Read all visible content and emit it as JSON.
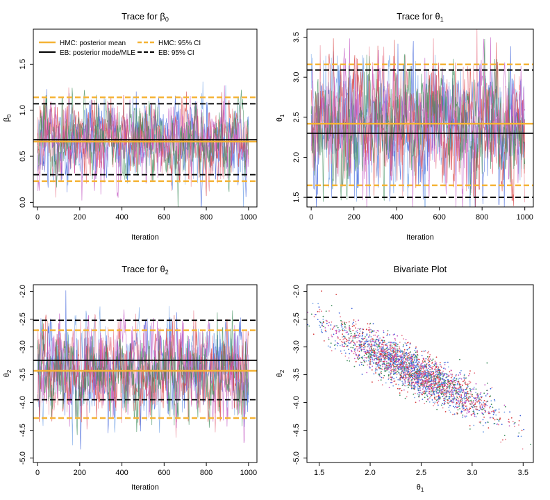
{
  "colors": {
    "hmc": "#F5B335",
    "eb": "#000000",
    "chains": [
      "#6FA0E6",
      "#3A5FD9",
      "#E8788A",
      "#D63A3A",
      "#C154C1",
      "#3C8C5A"
    ]
  },
  "legend": {
    "hmc_mean": "HMC: posterior mean",
    "eb_mode": "EB: posterior mode/MLE",
    "hmc_ci": "HMC: 95% CI",
    "eb_ci": "EB: 95% CI"
  },
  "chart_data": [
    {
      "type": "line",
      "title_text": "Trace for ",
      "title_symbol": "β",
      "title_sub": "0",
      "xlabel": "Iteration",
      "ylabel_symbol": "β",
      "ylabel_sub": "0",
      "xlim": [
        -20,
        1040
      ],
      "ylim": [
        -0.05,
        1.88
      ],
      "xticks": [
        0,
        200,
        400,
        600,
        800,
        1000
      ],
      "xtick_labels": [
        "0",
        "200",
        "400",
        "600",
        "800",
        "1000"
      ],
      "yticks": [
        0.0,
        0.5,
        1.0,
        1.5
      ],
      "ytick_labels": [
        "0.0",
        "0.5",
        "1.0",
        "1.5"
      ],
      "series": [
        {
          "name": "chains",
          "n_iter": 1000,
          "n_chains": 6,
          "center": 0.67,
          "spread": 0.2
        }
      ],
      "hlines": {
        "hmc_mean": 0.66,
        "eb_mode": 0.68,
        "hmc_ci": [
          0.23,
          1.14
        ],
        "eb_ci": [
          0.3,
          1.07
        ]
      }
    },
    {
      "type": "line",
      "title_text": "Trace for ",
      "title_symbol": "θ",
      "title_sub": "1",
      "xlabel": "Iteration",
      "ylabel_symbol": "θ",
      "ylabel_sub": "1",
      "xlim": [
        -20,
        1040
      ],
      "ylim": [
        1.38,
        3.6
      ],
      "xticks": [
        0,
        200,
        400,
        600,
        800,
        1000
      ],
      "xtick_labels": [
        "0",
        "200",
        "400",
        "600",
        "800",
        "1000"
      ],
      "yticks": [
        1.5,
        2.0,
        2.5,
        3.0,
        3.5
      ],
      "ytick_labels": [
        "1.5",
        "2.0",
        "2.5",
        "3.0",
        "3.5"
      ],
      "series": [
        {
          "name": "chains",
          "n_iter": 1000,
          "n_chains": 6,
          "center": 2.42,
          "spread": 0.38
        }
      ],
      "hlines": {
        "hmc_mean": 2.42,
        "eb_mode": 2.3,
        "hmc_ci": [
          1.65,
          3.16
        ],
        "eb_ci": [
          1.5,
          3.09
        ]
      }
    },
    {
      "type": "line",
      "title_text": "Trace for ",
      "title_symbol": "θ",
      "title_sub": "2",
      "xlabel": "Iteration",
      "ylabel_symbol": "θ",
      "ylabel_sub": "2",
      "xlim": [
        -20,
        1040
      ],
      "ylim": [
        -5.08,
        -1.88
      ],
      "xticks": [
        0,
        200,
        400,
        600,
        800,
        1000
      ],
      "xtick_labels": [
        "0",
        "200",
        "400",
        "600",
        "800",
        "1000"
      ],
      "yticks": [
        -5.0,
        -4.5,
        -4.0,
        -3.5,
        -3.0,
        -2.5,
        -2.0
      ],
      "ytick_labels": [
        "-5.0",
        "-4.5",
        "-4.0",
        "-3.5",
        "-3.0",
        "-2.5",
        "-2.0"
      ],
      "series": [
        {
          "name": "chains",
          "n_iter": 1000,
          "n_chains": 6,
          "center": -3.43,
          "spread": 0.4
        }
      ],
      "hlines": {
        "hmc_mean": -3.43,
        "eb_mode": -3.24,
        "hmc_ci": [
          -4.28,
          -2.7
        ],
        "eb_ci": [
          -3.95,
          -2.52
        ]
      }
    },
    {
      "type": "scatter",
      "title_text": "Bivariate Plot",
      "xlabel_symbol": "θ",
      "xlabel_sub": "1",
      "ylabel_symbol": "θ",
      "ylabel_sub": "2",
      "xlim": [
        1.38,
        3.6
      ],
      "ylim": [
        -5.08,
        -1.88
      ],
      "xticks": [
        1.5,
        2.0,
        2.5,
        3.0,
        3.5
      ],
      "xtick_labels": [
        "1.5",
        "2.0",
        "2.5",
        "3.0",
        "3.5"
      ],
      "yticks": [
        -5.0,
        -4.5,
        -4.0,
        -3.5,
        -3.0,
        -2.5,
        -2.0
      ],
      "ytick_labels": [
        "-5.0",
        "-4.5",
        "-4.0",
        "-3.5",
        "-3.0",
        "-2.5",
        "-2.0"
      ],
      "series": [
        {
          "name": "samples",
          "n_points": 3000,
          "x_mean": 2.42,
          "x_sd": 0.38,
          "y_mean": -3.43,
          "y_sd": 0.4,
          "correlation": -0.88
        }
      ]
    }
  ]
}
